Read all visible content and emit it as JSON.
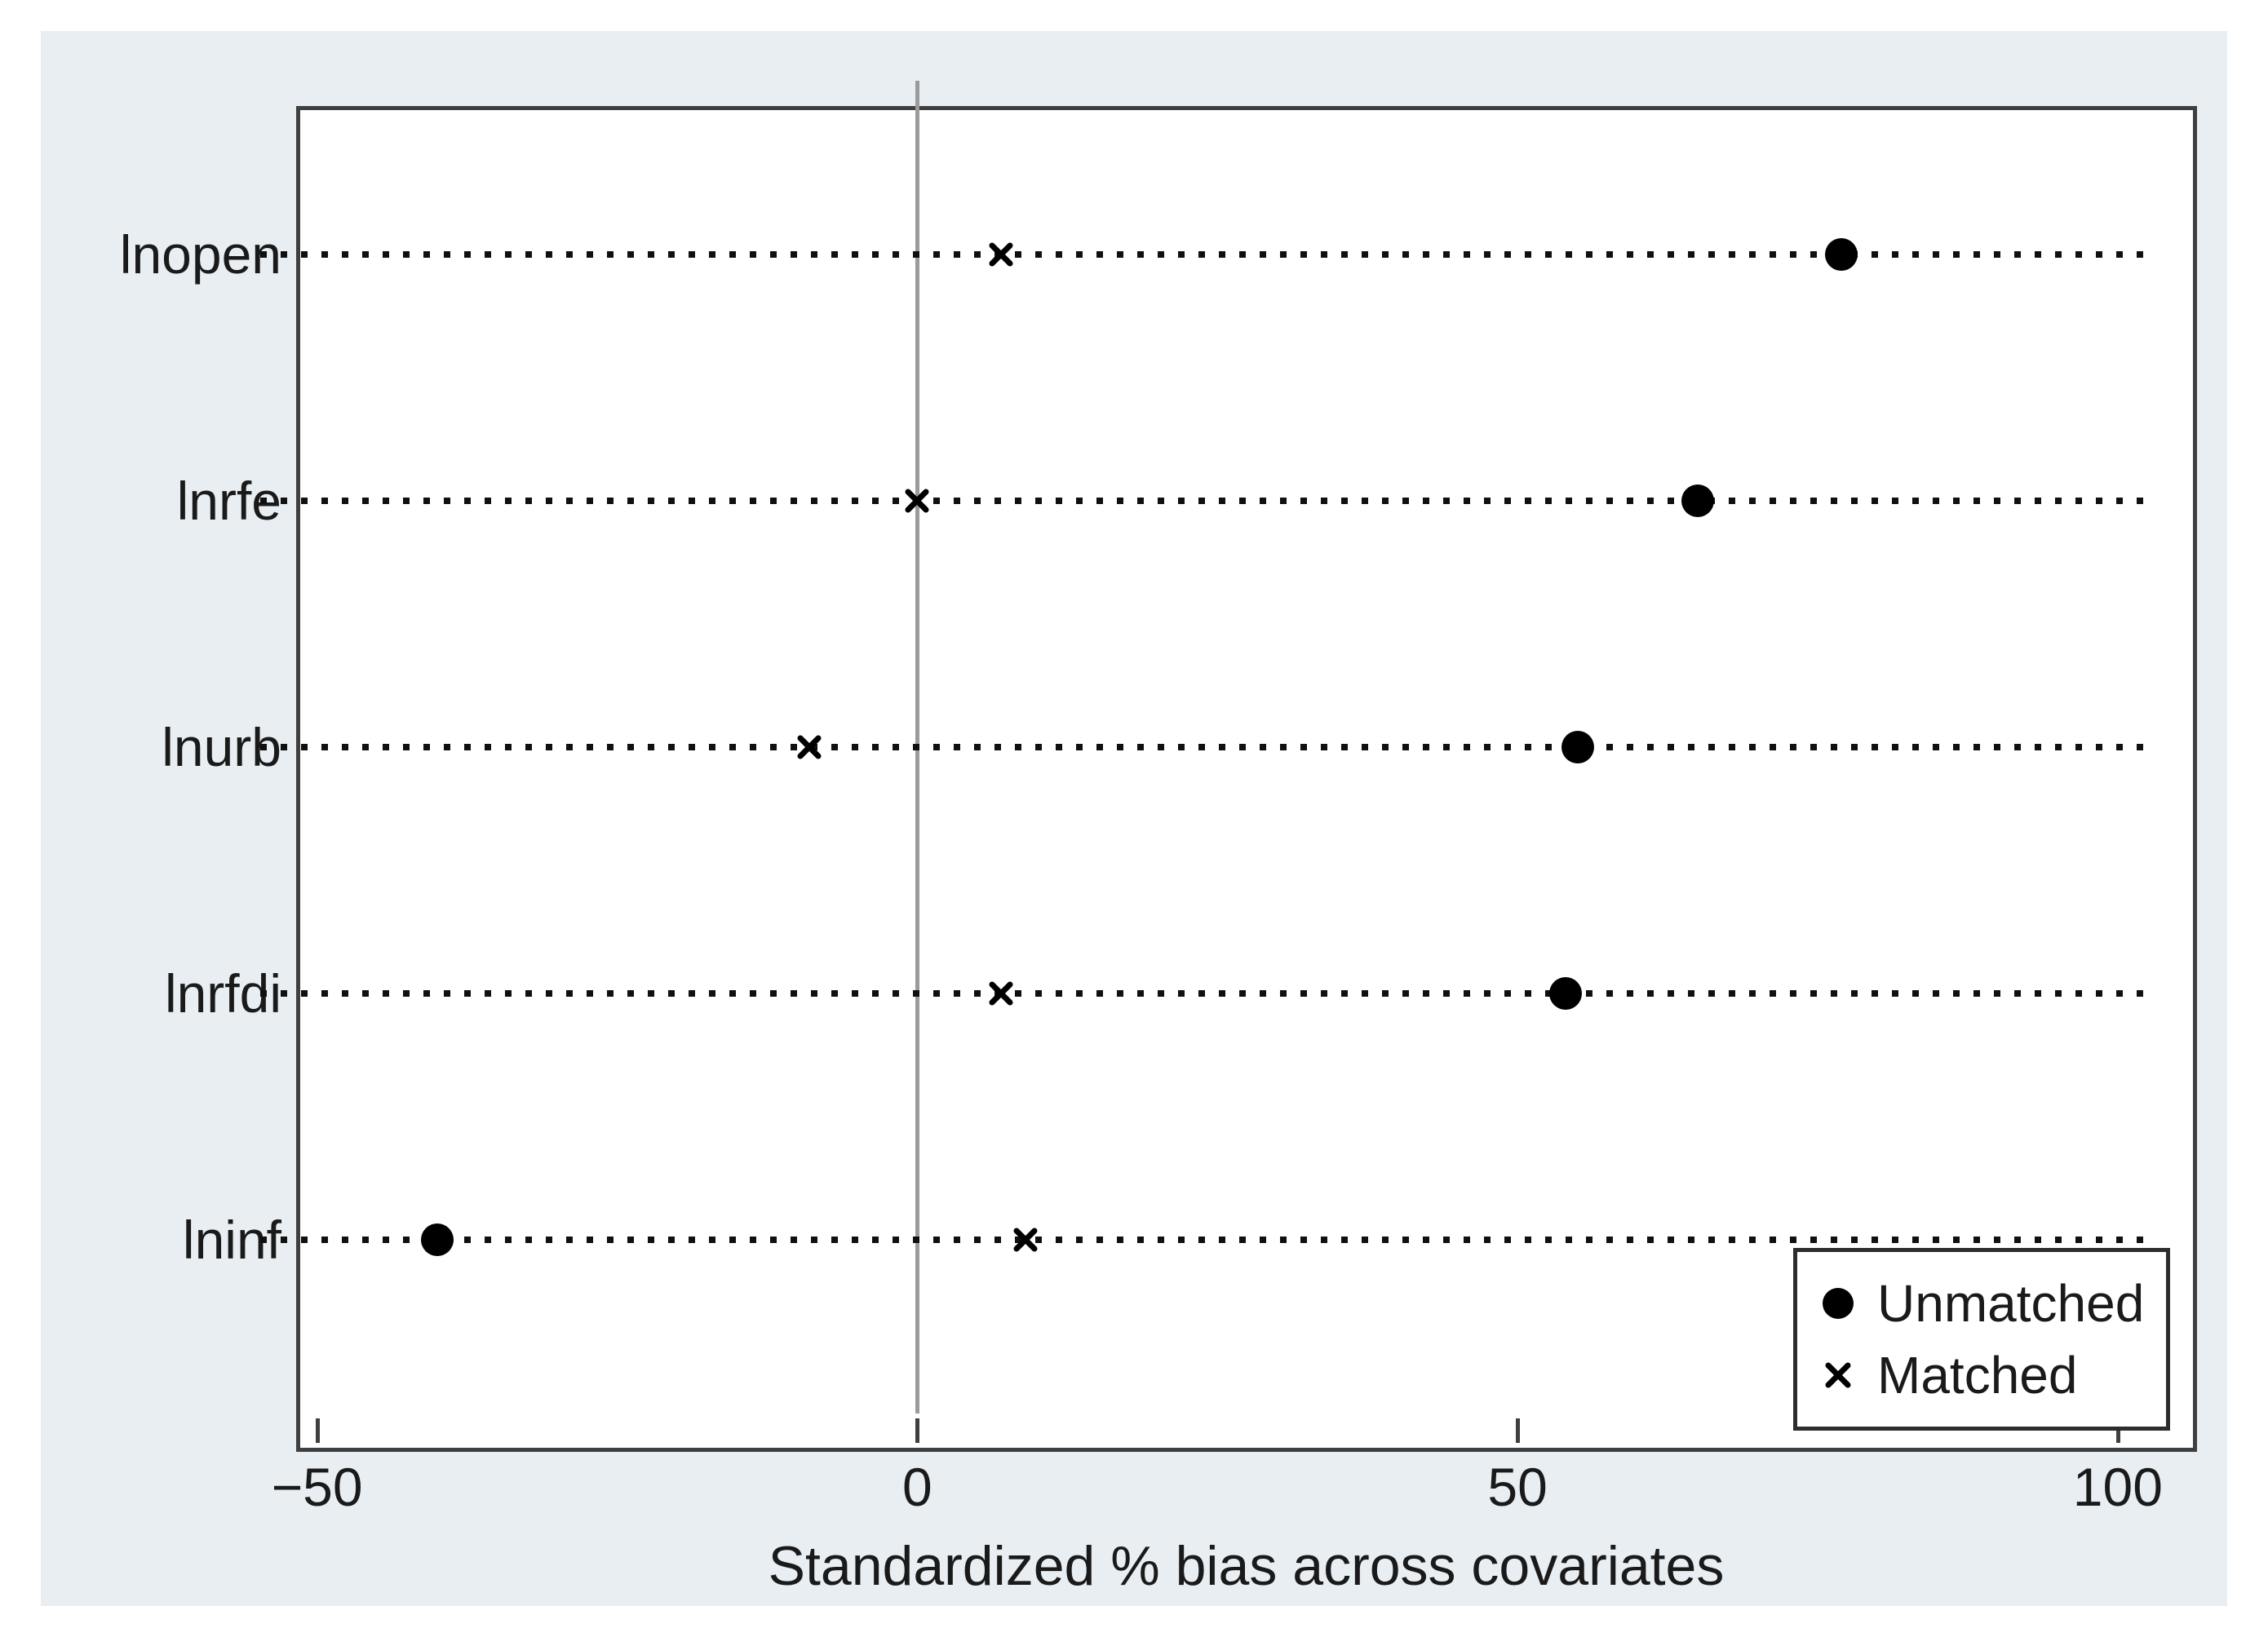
{
  "chart_data": {
    "type": "scatter",
    "title": "",
    "xlabel": "Standardized % bias across covariates",
    "ylabel": "",
    "categories": [
      "lnopen",
      "lnrfe",
      "lnurb",
      "lnrfdi",
      "lninf"
    ],
    "series": [
      {
        "name": "Unmatched",
        "marker": "filled-circle",
        "values": [
          77,
          65,
          55,
          54,
          -40
        ]
      },
      {
        "name": "Matched",
        "marker": "x-cross",
        "values": [
          7,
          0,
          -9,
          7,
          9
        ]
      }
    ],
    "x_ticks": [
      {
        "label": "−50",
        "value": -50
      },
      {
        "label": "0",
        "value": 0
      },
      {
        "label": "50",
        "value": 50
      },
      {
        "label": "100",
        "value": 100
      }
    ],
    "xlim": [
      -55,
      103
    ],
    "grid": "horizontal-dotted",
    "zero_reference_line": true,
    "legend_position": "bottom-right"
  },
  "legend": {
    "items": [
      {
        "symbol": "filled-circle",
        "label": "Unmatched"
      },
      {
        "symbol": "x-cross",
        "label": "Matched"
      }
    ]
  },
  "colors": {
    "marker": "#000000",
    "text": "#1a1a1a",
    "outer_background": "#e8eef1",
    "plot_background": "#ffffff",
    "plot_border": "#3f3f3f",
    "zero_line": "#9b9b9b",
    "grid_dots": "#101010"
  }
}
